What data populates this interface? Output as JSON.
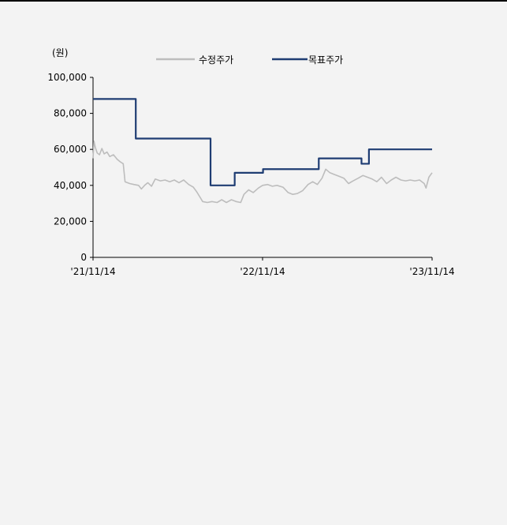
{
  "chart_data": {
    "type": "line",
    "ylabel": "(원)",
    "ylim": [
      0,
      100000
    ],
    "y_ticks": [
      "100,000",
      "80,000",
      "60,000",
      "40,000",
      "20,000",
      "0"
    ],
    "y_tick_values": [
      100000,
      80000,
      60000,
      40000,
      20000,
      0
    ],
    "x_ticks": [
      "'21/11/14",
      "'22/11/14",
      "'23/11/14"
    ],
    "xlim": [
      "2021-11-14",
      "2023-11-14"
    ],
    "legend_placement": "top-center",
    "grid": false,
    "series": [
      {
        "name": "수정주가",
        "color": "#bdbdbd",
        "line": "polyline",
        "points": [
          [
            "2021-11-14",
            55000
          ],
          [
            "2021-11-16",
            64500
          ],
          [
            "2021-11-19",
            61000
          ],
          [
            "2021-11-23",
            58000
          ],
          [
            "2021-11-28",
            57000
          ],
          [
            "2021-12-03",
            60500
          ],
          [
            "2021-12-08",
            57500
          ],
          [
            "2021-12-14",
            58500
          ],
          [
            "2021-12-20",
            56000
          ],
          [
            "2021-12-28",
            57000
          ],
          [
            "2022-01-05",
            54500
          ],
          [
            "2022-01-12",
            53000
          ],
          [
            "2022-01-18",
            52000
          ],
          [
            "2022-01-22",
            42000
          ],
          [
            "2022-02-01",
            41000
          ],
          [
            "2022-02-10",
            40500
          ],
          [
            "2022-02-20",
            40000
          ],
          [
            "2022-02-26",
            38000
          ],
          [
            "2022-03-05",
            40000
          ],
          [
            "2022-03-12",
            41500
          ],
          [
            "2022-03-20",
            39500
          ],
          [
            "2022-03-28",
            43500
          ],
          [
            "2022-04-08",
            42500
          ],
          [
            "2022-04-18",
            43000
          ],
          [
            "2022-04-28",
            42000
          ],
          [
            "2022-05-08",
            43000
          ],
          [
            "2022-05-18",
            41500
          ],
          [
            "2022-05-28",
            43000
          ],
          [
            "2022-06-08",
            40500
          ],
          [
            "2022-06-18",
            39000
          ],
          [
            "2022-06-25",
            36500
          ],
          [
            "2022-07-01",
            34000
          ],
          [
            "2022-07-08",
            31000
          ],
          [
            "2022-07-18",
            30500
          ],
          [
            "2022-07-28",
            31000
          ],
          [
            "2022-08-08",
            30500
          ],
          [
            "2022-08-18",
            32000
          ],
          [
            "2022-08-28",
            30500
          ],
          [
            "2022-09-08",
            32000
          ],
          [
            "2022-09-18",
            31000
          ],
          [
            "2022-09-28",
            30500
          ],
          [
            "2022-10-05",
            35000
          ],
          [
            "2022-10-15",
            37500
          ],
          [
            "2022-10-25",
            36000
          ],
          [
            "2022-11-05",
            38500
          ],
          [
            "2022-11-14",
            40000
          ],
          [
            "2022-11-25",
            40500
          ],
          [
            "2022-12-05",
            39500
          ],
          [
            "2022-12-15",
            40000
          ],
          [
            "2022-12-28",
            39000
          ],
          [
            "2023-01-08",
            36000
          ],
          [
            "2023-01-18",
            35000
          ],
          [
            "2023-01-28",
            35500
          ],
          [
            "2023-02-08",
            37000
          ],
          [
            "2023-02-20",
            40500
          ],
          [
            "2023-03-02",
            42000
          ],
          [
            "2023-03-12",
            40500
          ],
          [
            "2023-03-22",
            44000
          ],
          [
            "2023-03-30",
            49000
          ],
          [
            "2023-04-08",
            47000
          ],
          [
            "2023-04-18",
            46000
          ],
          [
            "2023-04-28",
            45000
          ],
          [
            "2023-05-08",
            44000
          ],
          [
            "2023-05-18",
            41000
          ],
          [
            "2023-05-28",
            42500
          ],
          [
            "2023-06-08",
            44000
          ],
          [
            "2023-06-18",
            45500
          ],
          [
            "2023-06-28",
            44500
          ],
          [
            "2023-07-08",
            43500
          ],
          [
            "2023-07-18",
            42000
          ],
          [
            "2023-07-28",
            44500
          ],
          [
            "2023-08-08",
            41000
          ],
          [
            "2023-08-18",
            43000
          ],
          [
            "2023-08-28",
            44500
          ],
          [
            "2023-09-08",
            43000
          ],
          [
            "2023-09-18",
            42500
          ],
          [
            "2023-09-28",
            43000
          ],
          [
            "2023-10-08",
            42500
          ],
          [
            "2023-10-18",
            43000
          ],
          [
            "2023-10-28",
            41000
          ],
          [
            "2023-11-01",
            38500
          ],
          [
            "2023-11-07",
            44500
          ],
          [
            "2023-11-14",
            47000
          ]
        ]
      },
      {
        "name": "목표주가",
        "color": "#1f3d73",
        "line": "step",
        "points": [
          [
            "2021-11-14",
            88000
          ],
          [
            "2022-02-14",
            66000
          ],
          [
            "2022-07-25",
            40000
          ],
          [
            "2022-09-15",
            47000
          ],
          [
            "2022-11-15",
            49000
          ],
          [
            "2023-03-15",
            55000
          ],
          [
            "2023-06-15",
            52000
          ],
          [
            "2023-07-01",
            60000
          ],
          [
            "2023-11-14",
            60000
          ]
        ]
      }
    ]
  }
}
